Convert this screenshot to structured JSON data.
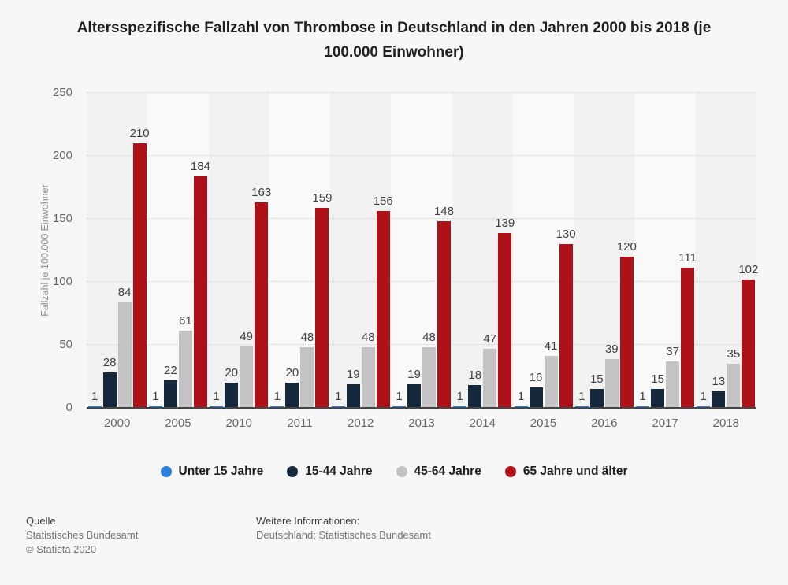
{
  "title": "Altersspezifische Fallzahl von Thrombose in Deutschland in den Jahren 2000 bis 2018 (je 100.000 Einwohner)",
  "chart_data": {
    "type": "bar",
    "title": "Altersspezifische Fallzahl von Thrombose in Deutschland in den Jahren 2000 bis 2018 (je 100.000 Einwohner)",
    "xlabel": "",
    "ylabel": "Fallzahl je 100.000 Einwohner",
    "ylim": [
      0,
      250
    ],
    "yticks": [
      0,
      50,
      100,
      150,
      200,
      250
    ],
    "grid": "horizontal-dotted",
    "legend_position": "bottom",
    "band_colors": [
      "#f2f2f2",
      "#f9f9f9"
    ],
    "axis_line_color": "#454545",
    "categories": [
      "2000",
      "2005",
      "2010",
      "2011",
      "2012",
      "2013",
      "2014",
      "2015",
      "2016",
      "2017",
      "2018"
    ],
    "series": [
      {
        "name": "Unter 15 Jahre",
        "color": "#2f7ed9",
        "values": [
          1,
          1,
          1,
          1,
          1,
          1,
          1,
          1,
          1,
          1,
          1
        ]
      },
      {
        "name": "15-44 Jahre",
        "color": "#16283c",
        "values": [
          28,
          22,
          20,
          20,
          19,
          19,
          18,
          16,
          15,
          15,
          13
        ]
      },
      {
        "name": "45-64 Jahre",
        "color": "#c3c3c3",
        "values": [
          84,
          61,
          49,
          48,
          48,
          48,
          47,
          41,
          39,
          37,
          35
        ]
      },
      {
        "name": "65 Jahre und älter",
        "color": "#af1118",
        "values": [
          210,
          184,
          163,
          159,
          156,
          148,
          139,
          130,
          120,
          111,
          102
        ]
      }
    ]
  },
  "footer": {
    "source_label": "Quelle",
    "source_value": "Statistisches Bundesamt",
    "copyright": "© Statista 2020",
    "more_info_label": "Weitere Informationen:",
    "more_info_value": "Deutschland; Statistisches Bundesamt"
  }
}
